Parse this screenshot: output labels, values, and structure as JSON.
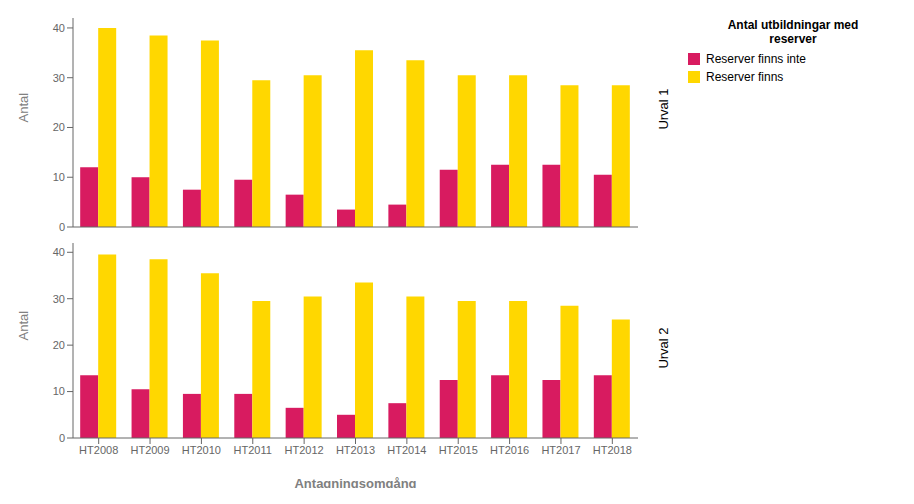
{
  "chart_data": [
    {
      "type": "bar",
      "annotation": "Urval 1",
      "ylabel": "Antal",
      "categories": [
        "HT2008",
        "HT2009",
        "HT2010",
        "HT2011",
        "HT2012",
        "HT2013",
        "HT2014",
        "HT2015",
        "HT2016",
        "HT2017",
        "HT2018"
      ],
      "series": [
        {
          "name": "Reserver finns inte",
          "color": "#D81B60",
          "values": [
            12,
            10,
            7.5,
            9.5,
            6.5,
            3.5,
            4.5,
            11.5,
            12.5,
            12.5,
            10.5
          ]
        },
        {
          "name": "Reserver finns",
          "color": "#FFD700",
          "values": [
            40,
            38.5,
            37.5,
            29.5,
            30.5,
            35.5,
            33.5,
            30.5,
            30.5,
            28.5,
            28.5
          ]
        }
      ],
      "ylim": [
        0,
        42
      ],
      "yticks": [
        0,
        10,
        20,
        30,
        40
      ],
      "tick_labels": "y",
      "legend": "right",
      "legend_title": "Antal utbildningar med\nreserver"
    },
    {
      "type": "bar",
      "annotation": "Urval 2",
      "ylabel": "Antal",
      "xlabel": "Antagningsomgång",
      "categories": [
        "HT2008",
        "HT2009",
        "HT2010",
        "HT2011",
        "HT2012",
        "HT2013",
        "HT2014",
        "HT2015",
        "HT2016",
        "HT2017",
        "HT2018"
      ],
      "series": [
        {
          "name": "Reserver finns inte",
          "color": "#D81B60",
          "values": [
            13.5,
            10.5,
            9.5,
            9.5,
            6.5,
            5.0,
            7.5,
            12.5,
            13.5,
            12.5,
            13.5
          ]
        },
        {
          "name": "Reserver finns",
          "color": "#FFD700",
          "values": [
            39.5,
            38.5,
            35.5,
            29.5,
            30.5,
            33.5,
            30.5,
            29.5,
            29.5,
            28.5,
            25.5
          ]
        }
      ],
      "ylim": [
        0,
        42
      ],
      "yticks": [
        0,
        10,
        20,
        30,
        40
      ]
    }
  ]
}
